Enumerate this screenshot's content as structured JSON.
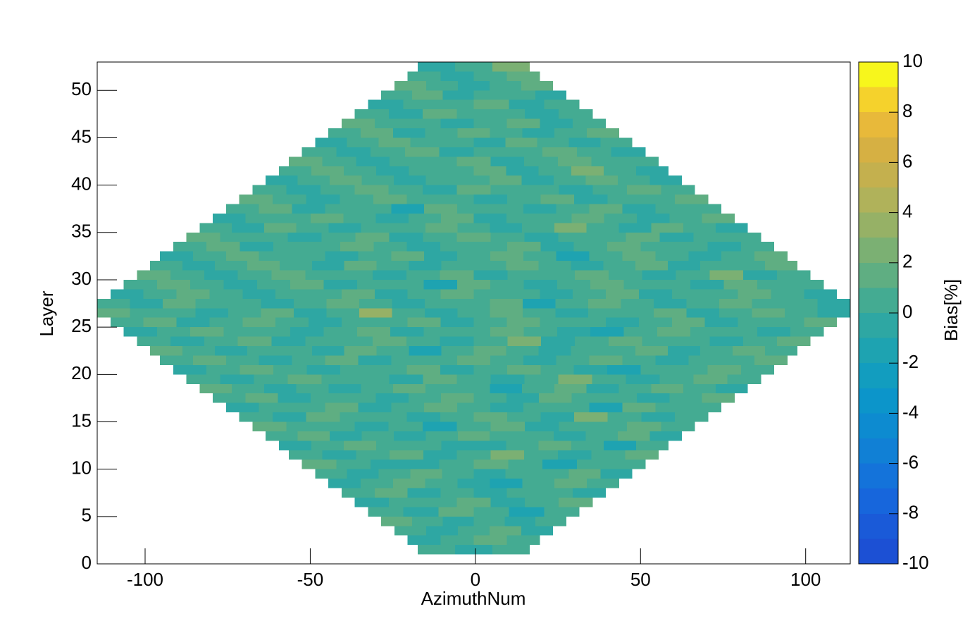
{
  "chart_data": {
    "type": "heatmap",
    "x_label": "AzimuthNum",
    "y_label": "Layer",
    "z_label": "Bias[%]",
    "xlim": [
      -114.5,
      113.5
    ],
    "xticks": [
      -100,
      -50,
      0,
      50,
      100
    ],
    "ylim": [
      0,
      53
    ],
    "yticks": [
      0,
      5,
      10,
      15,
      20,
      25,
      30,
      35,
      40,
      45,
      50
    ],
    "zlim": [
      -10,
      10
    ],
    "zticks": [
      -10,
      -8,
      -6,
      -4,
      -2,
      0,
      2,
      4,
      6,
      8,
      10
    ],
    "palette": [
      "#1c50d4",
      "#1a5ad8",
      "#1766dc",
      "#1473da",
      "#1180d5",
      "#0d8bd0",
      "#0c95ca",
      "#129dbf",
      "#1ea3b1",
      "#2ea7a3",
      "#44ab92",
      "#5fae82",
      "#7bb073",
      "#96b166",
      "#b0b25a",
      "#c4b04e",
      "#d6b043",
      "#e8b93a",
      "#f5d22c",
      "#f7f61c"
    ],
    "rows": [
      {
        "layer": 1,
        "xmin": -17.5,
        "xmax": 16.5,
        "values": [
          0,
          -1,
          0
        ]
      },
      {
        "layer": 2,
        "xmin": -20.5,
        "xmax": 19.5,
        "values": [
          -1,
          0,
          1,
          0
        ]
      },
      {
        "layer": 3,
        "xmin": -24.5,
        "xmax": 23.5,
        "values": [
          0,
          -1,
          0,
          1,
          -1
        ]
      },
      {
        "layer": 4,
        "xmin": -28.5,
        "xmax": 27.5,
        "values": [
          1,
          0,
          -1,
          0,
          -1,
          0
        ]
      },
      {
        "layer": 5,
        "xmin": -32.5,
        "xmax": 31.5,
        "values": [
          0,
          -1,
          1,
          0,
          -2,
          0
        ]
      },
      {
        "layer": 6,
        "xmin": -36.5,
        "xmax": 35.5,
        "values": [
          -1,
          0,
          0,
          1,
          -1,
          0,
          1
        ]
      },
      {
        "layer": 7,
        "xmin": -40.5,
        "xmax": 39.5,
        "values": [
          0,
          1,
          -1,
          0,
          -1,
          0,
          0,
          -1
        ]
      },
      {
        "layer": 8,
        "xmin": -44.5,
        "xmax": 43.5,
        "values": [
          -1,
          0,
          1,
          0,
          -1,
          -2,
          0,
          1,
          0
        ]
      },
      {
        "layer": 9,
        "xmin": -48.5,
        "xmax": 47.5,
        "values": [
          0,
          -1,
          0,
          1,
          0,
          -1,
          0,
          0,
          1,
          -1
        ]
      },
      {
        "layer": 10,
        "xmin": -52.5,
        "xmax": 51.5,
        "values": [
          1,
          0,
          -1,
          -1,
          0,
          1,
          0,
          -2,
          0,
          0
        ]
      },
      {
        "layer": 11,
        "xmin": -56.5,
        "xmax": 55.5,
        "values": [
          0,
          -1,
          0,
          1,
          -1,
          0,
          2,
          0,
          -1,
          0,
          1
        ]
      },
      {
        "layer": 12,
        "xmin": -59.5,
        "xmax": 58.5,
        "values": [
          -1,
          0,
          1,
          0,
          0,
          -1,
          -1,
          0,
          1,
          0,
          -2,
          0
        ]
      },
      {
        "layer": 13,
        "xmin": -63.5,
        "xmax": 62.5,
        "values": [
          0,
          1,
          -1,
          0,
          -1,
          0,
          1,
          0,
          0,
          -1,
          0,
          1,
          -1
        ]
      },
      {
        "layer": 14,
        "xmin": -67.5,
        "xmax": 66.5,
        "values": [
          1,
          0,
          0,
          -1,
          0,
          -2,
          0,
          1,
          -1,
          0,
          0,
          1,
          0
        ]
      },
      {
        "layer": 15,
        "xmin": -71.5,
        "xmax": 70.5,
        "values": [
          0,
          -1,
          1,
          0,
          0,
          -1,
          0,
          1,
          0,
          -1,
          2,
          0,
          -1,
          0
        ]
      },
      {
        "layer": 16,
        "xmin": -75.5,
        "xmax": 74.5,
        "values": [
          -1,
          0,
          0,
          1,
          -1,
          0,
          1,
          0,
          -1,
          0,
          0,
          -2,
          1,
          0,
          0
        ]
      },
      {
        "layer": 17,
        "xmin": -79.5,
        "xmax": 78.5,
        "values": [
          0,
          1,
          -1,
          0,
          0,
          -1,
          0,
          1,
          0,
          -1,
          1,
          0,
          0,
          -1,
          0,
          1
        ]
      },
      {
        "layer": 18,
        "xmin": -83.5,
        "xmax": 82.5,
        "values": [
          1,
          0,
          -1,
          0,
          -1,
          0,
          1,
          0,
          0,
          -2,
          0,
          1,
          -1,
          0,
          1,
          0,
          -1
        ]
      },
      {
        "layer": 19,
        "xmin": -87.5,
        "xmax": 86.5,
        "values": [
          0,
          -1,
          0,
          1,
          0,
          0,
          -1,
          1,
          0,
          -1,
          0,
          2,
          0,
          -1,
          0,
          1,
          0
        ]
      },
      {
        "layer": 20,
        "xmin": -91.5,
        "xmax": 90.5,
        "values": [
          -1,
          0,
          1,
          0,
          -1,
          0,
          0,
          1,
          -1,
          0,
          1,
          0,
          -1,
          -2,
          0,
          0,
          1,
          0
        ]
      },
      {
        "layer": 21,
        "xmin": -95.5,
        "xmax": 94.5,
        "values": [
          0,
          1,
          0,
          -1,
          0,
          1,
          -1,
          0,
          0,
          1,
          0,
          -1,
          0,
          1,
          0,
          -1,
          0,
          0,
          1
        ]
      },
      {
        "layer": 22,
        "xmin": -98.5,
        "xmax": 97.5,
        "values": [
          1,
          0,
          -1,
          0,
          0,
          -1,
          1,
          0,
          -2,
          0,
          1,
          0,
          -1,
          0,
          0,
          1,
          -1,
          0,
          1,
          0
        ]
      },
      {
        "layer": 23,
        "xmin": -102.5,
        "xmax": 101.5,
        "values": [
          0,
          -1,
          0,
          1,
          -1,
          0,
          0,
          1,
          0,
          -1,
          0,
          2,
          -1,
          0,
          1,
          0,
          0,
          -1,
          0,
          1
        ]
      },
      {
        "layer": 24,
        "xmin": -106.5,
        "xmax": 105.5,
        "values": [
          -1,
          0,
          1,
          0,
          0,
          -1,
          0,
          1,
          -1,
          0,
          0,
          1,
          0,
          -1,
          -2,
          0,
          1,
          0,
          0,
          -1,
          0
        ]
      },
      {
        "layer": 25,
        "xmin": -110.5,
        "xmax": 109.5,
        "values": [
          0,
          1,
          -1,
          0,
          1,
          0,
          -1,
          0,
          0,
          1,
          -1,
          0,
          1,
          0,
          0,
          -1,
          0,
          1,
          -1,
          0,
          0,
          1
        ]
      },
      {
        "layer": 26,
        "xmin": -114.5,
        "xmax": 113.5,
        "values": [
          1,
          0,
          0,
          -1,
          0,
          1,
          -1,
          0,
          3,
          0,
          -1,
          0,
          1,
          0,
          -1,
          0,
          0,
          1,
          -1,
          0,
          1,
          0,
          -1
        ]
      },
      {
        "layer": 27,
        "xmin": -114.5,
        "xmax": 113.5,
        "values": [
          0,
          -1,
          1,
          0,
          0,
          -1,
          0,
          1,
          0,
          -1,
          0,
          0,
          1,
          -2,
          0,
          1,
          0,
          -1,
          0,
          1,
          0,
          0,
          -1
        ]
      },
      {
        "layer": 28,
        "xmin": -110.5,
        "xmax": 109.5,
        "values": [
          -1,
          0,
          1,
          0,
          -1,
          0,
          0,
          1,
          -1,
          0,
          1,
          0,
          0,
          -1,
          0,
          1,
          -1,
          0,
          0,
          1,
          0,
          -1
        ]
      },
      {
        "layer": 29,
        "xmin": -106.5,
        "xmax": 105.5,
        "values": [
          0,
          1,
          0,
          -1,
          0,
          1,
          -1,
          0,
          0,
          -2,
          1,
          0,
          -1,
          0,
          1,
          0,
          0,
          -1,
          1,
          0,
          0
        ]
      },
      {
        "layer": 30,
        "xmin": -102.5,
        "xmax": 101.5,
        "values": [
          1,
          0,
          -1,
          0,
          1,
          0,
          0,
          -1,
          0,
          1,
          -1,
          0,
          0,
          1,
          0,
          -1,
          0,
          2,
          -1,
          0
        ]
      },
      {
        "layer": 31,
        "xmin": -98.5,
        "xmax": 97.5,
        "values": [
          0,
          -1,
          0,
          1,
          0,
          -1,
          1,
          0,
          -1,
          0,
          0,
          1,
          0,
          -1,
          0,
          1,
          -1,
          0,
          0,
          1
        ]
      },
      {
        "layer": 32,
        "xmin": -95.5,
        "xmax": 94.5,
        "values": [
          -1,
          0,
          1,
          0,
          0,
          -1,
          0,
          1,
          -1,
          0,
          1,
          0,
          -2,
          0,
          1,
          0,
          -1,
          0,
          1
        ]
      },
      {
        "layer": 33,
        "xmin": -91.5,
        "xmax": 90.5,
        "values": [
          0,
          1,
          -1,
          0,
          0,
          1,
          0,
          -1,
          0,
          0,
          1,
          -1,
          0,
          1,
          0,
          0,
          -1,
          0
        ]
      },
      {
        "layer": 34,
        "xmin": -87.5,
        "xmax": 86.5,
        "values": [
          1,
          0,
          0,
          -1,
          0,
          1,
          -1,
          0,
          1,
          0,
          -1,
          0,
          0,
          1,
          -1,
          0,
          0
        ]
      },
      {
        "layer": 35,
        "xmin": -83.5,
        "xmax": 82.5,
        "values": [
          0,
          -1,
          1,
          0,
          -1,
          0,
          0,
          1,
          0,
          -1,
          0,
          2,
          0,
          -1,
          1,
          0,
          -1
        ]
      },
      {
        "layer": 36,
        "xmin": -79.5,
        "xmax": 78.5,
        "values": [
          -1,
          0,
          0,
          1,
          0,
          -1,
          0,
          1,
          -1,
          0,
          0,
          1,
          0,
          -1,
          0,
          1
        ]
      },
      {
        "layer": 37,
        "xmin": -75.5,
        "xmax": 74.5,
        "values": [
          0,
          1,
          -1,
          0,
          0,
          -2,
          1,
          0,
          0,
          -1,
          0,
          1,
          -1,
          0,
          0
        ]
      },
      {
        "layer": 38,
        "xmin": -71.5,
        "xmax": 70.5,
        "values": [
          1,
          0,
          -1,
          0,
          1,
          0,
          0,
          -1,
          0,
          1,
          -1,
          0,
          0,
          1
        ]
      },
      {
        "layer": 39,
        "xmin": -67.5,
        "xmax": 66.5,
        "values": [
          0,
          -1,
          0,
          1,
          0,
          -1,
          1,
          0,
          0,
          -1,
          0,
          1,
          0
        ]
      },
      {
        "layer": 40,
        "xmin": -63.5,
        "xmax": 62.5,
        "values": [
          -1,
          0,
          1,
          0,
          -1,
          0,
          0,
          1,
          -1,
          0,
          1,
          0,
          -1
        ]
      },
      {
        "layer": 41,
        "xmin": -59.5,
        "xmax": 58.5,
        "values": [
          0,
          1,
          0,
          -1,
          0,
          0,
          1,
          -1,
          0,
          2,
          0,
          -1
        ]
      },
      {
        "layer": 42,
        "xmin": -56.5,
        "xmax": 55.5,
        "values": [
          1,
          0,
          -1,
          0,
          0,
          1,
          -1,
          0,
          1,
          0,
          0
        ]
      },
      {
        "layer": 43,
        "xmin": -52.5,
        "xmax": 51.5,
        "values": [
          0,
          -1,
          0,
          1,
          -1,
          0,
          0,
          1,
          0,
          -1
        ]
      },
      {
        "layer": 44,
        "xmin": -48.5,
        "xmax": 47.5,
        "values": [
          -1,
          0,
          1,
          0,
          0,
          -1,
          1,
          0,
          -1,
          0
        ]
      },
      {
        "layer": 45,
        "xmin": -44.5,
        "xmax": 43.5,
        "values": [
          0,
          1,
          -1,
          0,
          1,
          0,
          -1,
          0,
          1
        ]
      },
      {
        "layer": 46,
        "xmin": -40.5,
        "xmax": 39.5,
        "values": [
          1,
          0,
          0,
          -1,
          0,
          1,
          -1,
          0
        ]
      },
      {
        "layer": 47,
        "xmin": -36.5,
        "xmax": 35.5,
        "values": [
          0,
          -1,
          1,
          0,
          0,
          -1,
          0
        ]
      },
      {
        "layer": 48,
        "xmin": -32.5,
        "xmax": 31.5,
        "values": [
          -1,
          0,
          0,
          1,
          -1,
          0
        ]
      },
      {
        "layer": 49,
        "xmin": -28.5,
        "xmax": 27.5,
        "values": [
          0,
          1,
          -1,
          0,
          0,
          -1
        ]
      },
      {
        "layer": 50,
        "xmin": -24.5,
        "xmax": 23.5,
        "values": [
          1,
          0,
          -1,
          0,
          1
        ]
      },
      {
        "layer": 51,
        "xmin": -20.5,
        "xmax": 19.5,
        "values": [
          0,
          -1,
          0,
          1
        ]
      },
      {
        "layer": 52,
        "xmin": -17.5,
        "xmax": 16.5,
        "values": [
          -1,
          0,
          2
        ]
      }
    ]
  }
}
